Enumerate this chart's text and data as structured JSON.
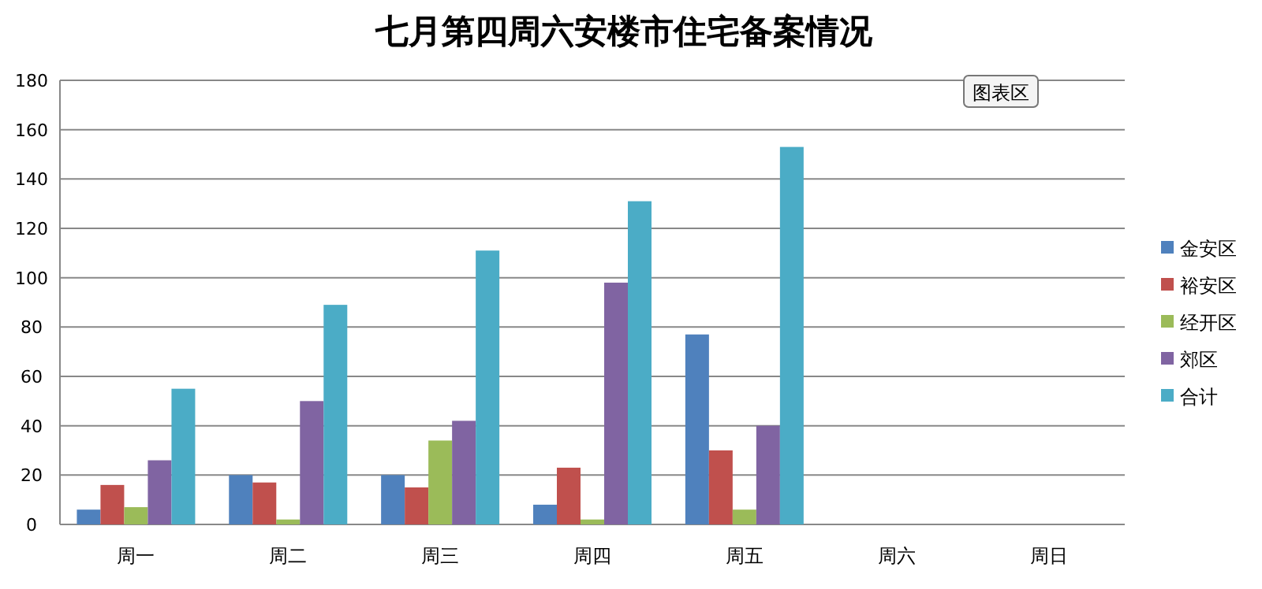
{
  "chart_data": {
    "type": "bar",
    "title": "七月第四周六安楼市住宅备案情况",
    "categories": [
      "周一",
      "周二",
      "周三",
      "周四",
      "周五",
      "周六",
      "周日"
    ],
    "series": [
      {
        "name": "金安区",
        "color": "#4f81bd",
        "values": [
          6,
          20,
          20,
          8,
          77,
          null,
          null
        ]
      },
      {
        "name": "裕安区",
        "color": "#c0504d",
        "values": [
          16,
          17,
          15,
          23,
          30,
          null,
          null
        ]
      },
      {
        "name": "经开区",
        "color": "#9bbb59",
        "values": [
          7,
          2,
          34,
          2,
          6,
          null,
          null
        ]
      },
      {
        "name": "郊区",
        "color": "#8064a2",
        "values": [
          26,
          50,
          42,
          98,
          40,
          null,
          null
        ]
      },
      {
        "name": "合计",
        "color": "#4bacc6",
        "values": [
          55,
          89,
          111,
          131,
          153,
          null,
          null
        ]
      }
    ],
    "ylim": [
      0,
      180
    ],
    "yticks": [
      0,
      20,
      40,
      60,
      80,
      100,
      120,
      140,
      160,
      180
    ],
    "grid": "y",
    "legend": "right",
    "annotations": [
      "图表区"
    ]
  }
}
